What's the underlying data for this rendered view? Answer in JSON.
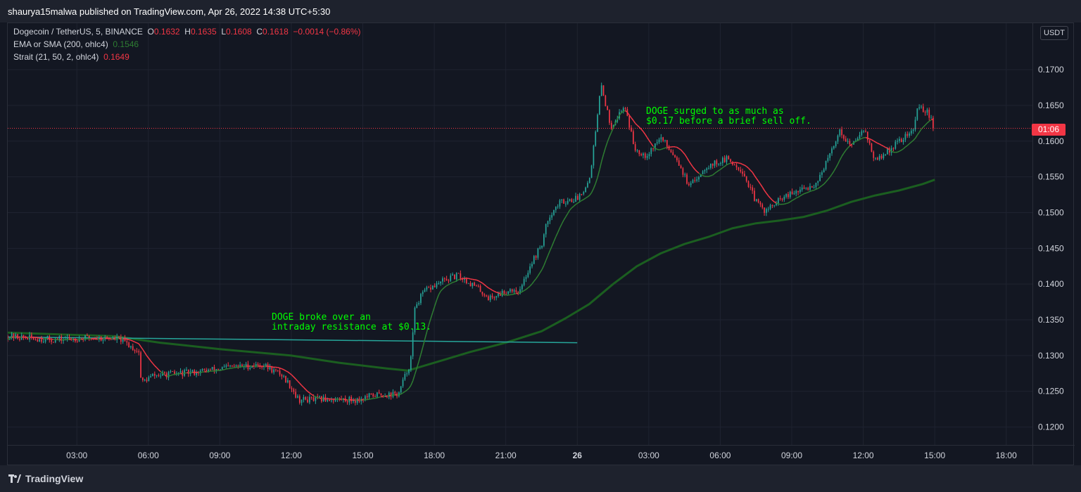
{
  "header": {
    "published": "shaurya15malwa published on TradingView.com, Apr 26, 2022 14:38 UTC+5:30"
  },
  "legend": {
    "symbol": "Dogecoin / TetherUS, 5, BINANCE",
    "open_label": "O",
    "open": "0.1632",
    "high_label": "H",
    "high": "0.1635",
    "low_label": "L",
    "low": "0.1608",
    "close_label": "C",
    "close": "0.1618",
    "change": "−0.0014 (−0.86%)",
    "ema_label": "EMA or SMA (200, ohlc4)",
    "ema_value": "0.1546",
    "strait_label": "Strait (21, 50, 2, ohlc4)",
    "strait_value": "0.1649"
  },
  "price_scale": {
    "currency": "USDT",
    "countdown": "01:06"
  },
  "annotations": {
    "breakout_line1": "DOGE broke over an",
    "breakout_line2": "intraday resistance at $0.13.",
    "surge_line1": "DOGE surged to as much as",
    "surge_line2": "$0.17 before a brief sell off."
  },
  "footer": {
    "brand": "TradingView"
  },
  "colors": {
    "up": "#26a69a",
    "down": "#f23645",
    "ema": "#1b5e20",
    "strait": "#f23645",
    "strait_green": "#2e7d32",
    "resistance": "#26a69a",
    "annotation": "#00ff00"
  },
  "chart_data": {
    "type": "candlestick",
    "instrument": "Dogecoin / TetherUS",
    "interval": "5",
    "exchange": "BINANCE",
    "y_ticks": [
      "0.1200",
      "0.1250",
      "0.1300",
      "0.1350",
      "0.1400",
      "0.1450",
      "0.1500",
      "0.1550",
      "0.1600",
      "0.1650",
      "0.1700"
    ],
    "ylim": [
      0.1175,
      0.1765
    ],
    "x_ticks": [
      "03:00",
      "06:00",
      "09:00",
      "12:00",
      "15:00",
      "18:00",
      "21:00",
      "26",
      "03:00",
      "06:00",
      "09:00",
      "12:00",
      "15:00",
      "18:00"
    ],
    "x_tick_hours": [
      3,
      6,
      9,
      12,
      15,
      18,
      21,
      24,
      27,
      30,
      33,
      36,
      39,
      42
    ],
    "xlim_hours": [
      0.1,
      43.1
    ],
    "last_price": 0.1618,
    "price_path": [
      {
        "t": 0.1,
        "p": 0.1327
      },
      {
        "t": 2.0,
        "p": 0.1322
      },
      {
        "t": 3.5,
        "p": 0.1325
      },
      {
        "t": 4.8,
        "p": 0.1323
      },
      {
        "t": 5.0,
        "p": 0.1319
      },
      {
        "t": 5.6,
        "p": 0.1305
      },
      {
        "t": 5.7,
        "p": 0.1262
      },
      {
        "t": 6.2,
        "p": 0.1272
      },
      {
        "t": 8.0,
        "p": 0.1277
      },
      {
        "t": 9.5,
        "p": 0.1284
      },
      {
        "t": 10.8,
        "p": 0.1287
      },
      {
        "t": 11.6,
        "p": 0.1273
      },
      {
        "t": 12.0,
        "p": 0.1256
      },
      {
        "t": 12.3,
        "p": 0.1238
      },
      {
        "t": 13.5,
        "p": 0.1239
      },
      {
        "t": 14.8,
        "p": 0.1238
      },
      {
        "t": 15.5,
        "p": 0.1245
      },
      {
        "t": 16.5,
        "p": 0.1246
      },
      {
        "t": 16.7,
        "p": 0.1265
      },
      {
        "t": 17.0,
        "p": 0.129
      },
      {
        "t": 17.2,
        "p": 0.137
      },
      {
        "t": 17.6,
        "p": 0.139
      },
      {
        "t": 18.4,
        "p": 0.1405
      },
      {
        "t": 19.0,
        "p": 0.1412
      },
      {
        "t": 19.8,
        "p": 0.1395
      },
      {
        "t": 20.3,
        "p": 0.138
      },
      {
        "t": 21.2,
        "p": 0.1393
      },
      {
        "t": 21.6,
        "p": 0.139
      },
      {
        "t": 22.0,
        "p": 0.1425
      },
      {
        "t": 22.5,
        "p": 0.1455
      },
      {
        "t": 22.8,
        "p": 0.1495
      },
      {
        "t": 23.3,
        "p": 0.1515
      },
      {
        "t": 24.0,
        "p": 0.152
      },
      {
        "t": 24.5,
        "p": 0.1545
      },
      {
        "t": 24.8,
        "p": 0.162
      },
      {
        "t": 25.0,
        "p": 0.168
      },
      {
        "t": 25.4,
        "p": 0.162
      },
      {
        "t": 26.0,
        "p": 0.165
      },
      {
        "t": 26.4,
        "p": 0.159
      },
      {
        "t": 26.9,
        "p": 0.158
      },
      {
        "t": 27.5,
        "p": 0.1605
      },
      {
        "t": 28.2,
        "p": 0.1575
      },
      {
        "t": 28.7,
        "p": 0.1535
      },
      {
        "t": 29.4,
        "p": 0.1565
      },
      {
        "t": 30.3,
        "p": 0.1575
      },
      {
        "t": 30.9,
        "p": 0.156
      },
      {
        "t": 31.5,
        "p": 0.1515
      },
      {
        "t": 31.9,
        "p": 0.1502
      },
      {
        "t": 32.6,
        "p": 0.152
      },
      {
        "t": 33.3,
        "p": 0.153
      },
      {
        "t": 34.0,
        "p": 0.154
      },
      {
        "t": 34.6,
        "p": 0.158
      },
      {
        "t": 35.0,
        "p": 0.1615
      },
      {
        "t": 35.5,
        "p": 0.1592
      },
      {
        "t": 36.0,
        "p": 0.162
      },
      {
        "t": 36.5,
        "p": 0.1572
      },
      {
        "t": 37.0,
        "p": 0.1585
      },
      {
        "t": 37.5,
        "p": 0.16
      },
      {
        "t": 38.1,
        "p": 0.1615
      },
      {
        "t": 38.3,
        "p": 0.165
      },
      {
        "t": 38.7,
        "p": 0.164
      },
      {
        "t": 39.0,
        "p": 0.1618
      }
    ],
    "series": [
      {
        "name": "EMA or SMA (200, ohlc4)",
        "points": [
          {
            "t": 0.1,
            "p": 0.1332
          },
          {
            "t": 4.6,
            "p": 0.1327
          },
          {
            "t": 6.5,
            "p": 0.1318
          },
          {
            "t": 9.0,
            "p": 0.1309
          },
          {
            "t": 12.0,
            "p": 0.13
          },
          {
            "t": 14.0,
            "p": 0.129
          },
          {
            "t": 16.0,
            "p": 0.1282
          },
          {
            "t": 16.9,
            "p": 0.1279
          },
          {
            "t": 18.0,
            "p": 0.129
          },
          {
            "t": 19.5,
            "p": 0.1305
          },
          {
            "t": 21.0,
            "p": 0.1318
          },
          {
            "t": 22.5,
            "p": 0.1334
          },
          {
            "t": 23.5,
            "p": 0.1352
          },
          {
            "t": 24.5,
            "p": 0.1372
          },
          {
            "t": 25.5,
            "p": 0.14
          },
          {
            "t": 26.5,
            "p": 0.1425
          },
          {
            "t": 27.5,
            "p": 0.1443
          },
          {
            "t": 28.5,
            "p": 0.1456
          },
          {
            "t": 29.5,
            "p": 0.1466
          },
          {
            "t": 30.5,
            "p": 0.1478
          },
          {
            "t": 31.5,
            "p": 0.1485
          },
          {
            "t": 32.5,
            "p": 0.1489
          },
          {
            "t": 33.5,
            "p": 0.1494
          },
          {
            "t": 34.5,
            "p": 0.1503
          },
          {
            "t": 35.5,
            "p": 0.1515
          },
          {
            "t": 36.5,
            "p": 0.1524
          },
          {
            "t": 37.5,
            "p": 0.1531
          },
          {
            "t": 38.5,
            "p": 0.154
          },
          {
            "t": 39.0,
            "p": 0.1546
          }
        ]
      }
    ],
    "resistance_line": {
      "t_start": 0.1,
      "p_start": 0.1326,
      "t_end": 24.0,
      "p_end": 0.1318
    },
    "current_price_line": 0.1618
  }
}
